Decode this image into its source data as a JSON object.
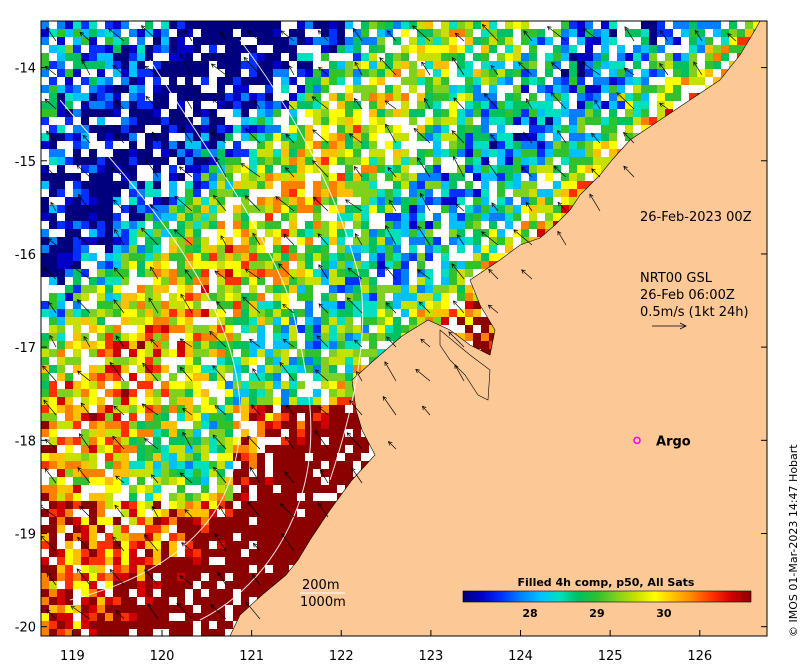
{
  "map": {
    "lon_range": [
      118.65,
      126.75
    ],
    "lat_range": [
      -20.1,
      -13.5
    ],
    "x_ticks": [
      {
        "value": 119,
        "label": "119"
      },
      {
        "value": 120,
        "label": "120"
      },
      {
        "value": 121,
        "label": "121"
      },
      {
        "value": 122,
        "label": "122"
      },
      {
        "value": 123,
        "label": "123"
      },
      {
        "value": 124,
        "label": "124"
      },
      {
        "value": 125,
        "label": "125"
      },
      {
        "value": 126,
        "label": "126"
      }
    ],
    "y_ticks": [
      {
        "value": -14,
        "label": "-14"
      },
      {
        "value": -15,
        "label": "-15"
      },
      {
        "value": -16,
        "label": "-16"
      },
      {
        "value": -17,
        "label": "-17"
      },
      {
        "value": -18,
        "label": "-18"
      },
      {
        "value": -19,
        "label": "-19"
      },
      {
        "value": -20,
        "label": "-20"
      }
    ],
    "land_color": "#fcc896",
    "nodata_color": "#ffffff"
  },
  "annotations": {
    "timestamp": "26-Feb-2023 00Z",
    "current_source": "NRT00 GSL",
    "current_time": "26-Feb 06:00Z",
    "current_scale": "0.5m/s (1kt 24h)",
    "argo_label": "Argo",
    "argo_marker_color": "#ff00ff",
    "contour_200": "200m",
    "contour_1000": "1000m"
  },
  "argo_float": {
    "lon": 125.3,
    "lat": -18.0
  },
  "colorbar": {
    "title": "Filled 4h comp, p50, All Sats",
    "min": 27.0,
    "max": 31.3,
    "ticks": [
      {
        "value": 28,
        "label": "28"
      },
      {
        "value": 29,
        "label": "29"
      },
      {
        "value": 30,
        "label": "30"
      }
    ],
    "colors": [
      "#00007f",
      "#0000c8",
      "#0030ff",
      "#0080ff",
      "#00c0ff",
      "#00e0c0",
      "#00c060",
      "#30c030",
      "#80d020",
      "#c8e000",
      "#ffff00",
      "#ffc000",
      "#ff8000",
      "#ff3000",
      "#d00000",
      "#8b0000"
    ]
  },
  "credit": "© IMOS 01-Mar-2023 14:47 Hobart"
}
